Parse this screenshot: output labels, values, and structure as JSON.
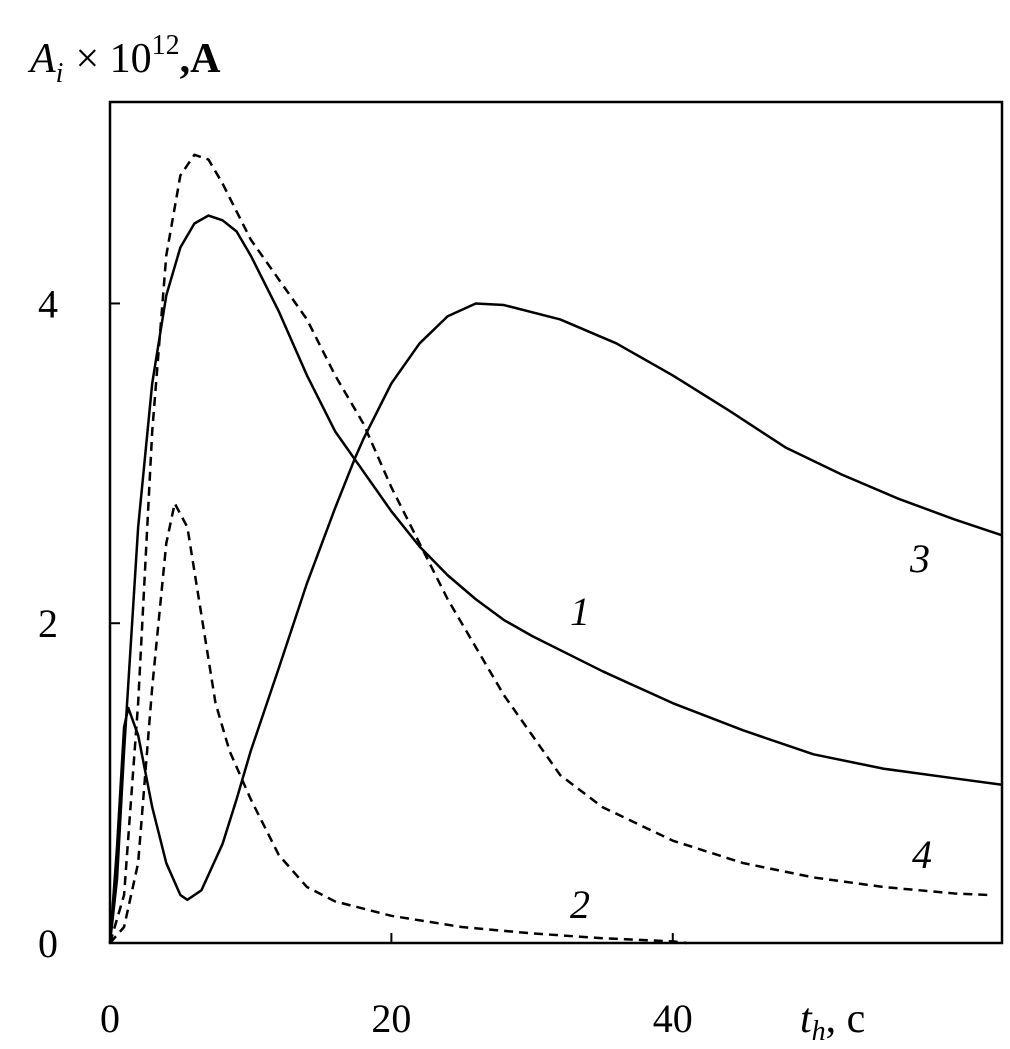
{
  "chart_data": {
    "type": "line",
    "y_label": {
      "base": "A",
      "sub": "i",
      "mid": "× 10",
      "sup": "12",
      "tail": ",A"
    },
    "x_label": {
      "base": "t",
      "sub": "h",
      "tail": ", c"
    },
    "xlim": [
      0,
      63.4
    ],
    "ylim": [
      0,
      5.26
    ],
    "xticks": [
      0,
      20,
      40
    ],
    "yticks": [
      0,
      2,
      4
    ],
    "series": [
      {
        "name": "1",
        "color": "#000000",
        "dashed": false,
        "x": [
          0,
          0.5,
          1,
          2,
          3,
          4,
          5,
          6,
          7,
          8,
          9,
          10,
          12,
          14,
          16,
          18,
          20,
          22,
          24,
          26,
          28,
          30,
          35,
          40,
          45,
          50,
          55,
          60,
          63.4
        ],
        "values": [
          0,
          0.4,
          1.2,
          2.6,
          3.5,
          4.05,
          4.35,
          4.5,
          4.55,
          4.52,
          4.45,
          4.3,
          3.95,
          3.55,
          3.2,
          2.95,
          2.7,
          2.48,
          2.3,
          2.15,
          2.02,
          1.92,
          1.7,
          1.5,
          1.33,
          1.18,
          1.09,
          1.03,
          0.99
        ]
      },
      {
        "name": "2",
        "color": "#000000",
        "dashed": true,
        "x": [
          0,
          1,
          2,
          3,
          4,
          4.6,
          5.5,
          6.5,
          7.5,
          8.5,
          10,
          12,
          14,
          16,
          20,
          25,
          30,
          35,
          40,
          41
        ],
        "values": [
          0,
          0.1,
          0.5,
          1.6,
          2.5,
          2.75,
          2.6,
          2.05,
          1.5,
          1.2,
          0.9,
          0.55,
          0.35,
          0.26,
          0.17,
          0.1,
          0.06,
          0.03,
          0.01,
          0
        ]
      },
      {
        "name": "3",
        "color": "#000000",
        "dashed": false,
        "x": [
          0,
          0.5,
          1,
          1.3,
          2,
          3,
          4,
          5,
          5.5,
          6.5,
          8,
          9,
          10,
          12,
          14,
          16,
          17.4,
          18,
          20,
          22,
          24,
          26,
          28,
          32,
          36,
          40,
          44,
          48,
          52,
          56,
          60,
          63.4
        ],
        "values": [
          0,
          0.6,
          1.35,
          1.47,
          1.3,
          0.85,
          0.5,
          0.3,
          0.27,
          0.33,
          0.62,
          0.9,
          1.2,
          1.72,
          2.25,
          2.72,
          3.03,
          3.15,
          3.5,
          3.75,
          3.92,
          4.0,
          3.99,
          3.9,
          3.75,
          3.55,
          3.33,
          3.1,
          2.93,
          2.78,
          2.65,
          2.55
        ]
      },
      {
        "name": "4",
        "color": "#000000",
        "dashed": true,
        "x": [
          0,
          1,
          2,
          3,
          4,
          5,
          6,
          7,
          8,
          10,
          12,
          14,
          16,
          18,
          20,
          22,
          24,
          26,
          28,
          30,
          32,
          35,
          40,
          45,
          50,
          55,
          60,
          62.5
        ],
        "values": [
          0,
          0.3,
          1.5,
          3.2,
          4.3,
          4.8,
          4.93,
          4.9,
          4.75,
          4.4,
          4.15,
          3.9,
          3.55,
          3.25,
          2.85,
          2.5,
          2.15,
          1.85,
          1.55,
          1.3,
          1.05,
          0.85,
          0.64,
          0.5,
          0.41,
          0.35,
          0.31,
          0.3
        ]
      }
    ]
  }
}
